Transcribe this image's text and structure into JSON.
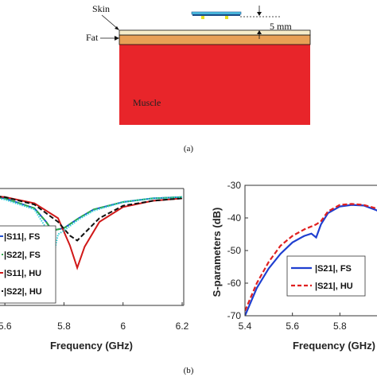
{
  "diagram": {
    "skin_label": "Skin",
    "fat_label": "Fat",
    "muscle_label": "Muscle",
    "distance_label": "5 mm",
    "caption_a": "(a)",
    "colors": {
      "skin": "#f7edc9",
      "fat": "#e8a055",
      "muscle": "#e8252a",
      "antenna_top": "#4fc6e8",
      "antenna_base": "#1c4f8a",
      "antenna_feet": "#e7e020"
    }
  },
  "caption_b": "(b)",
  "chart_data": [
    {
      "type": "line",
      "xlabel": "Frequency (GHz)",
      "ylabel": "",
      "xlim": [
        5.5,
        6.2
      ],
      "xticks": [
        "5.6",
        "5.8",
        "6",
        "6.2"
      ],
      "legend_position": "bottom-left",
      "series": [
        {
          "name": "|S11|, FS",
          "color": "#1f4fd0",
          "style": "solid",
          "x": [
            5.5,
            5.6,
            5.7,
            5.74,
            5.76,
            5.8,
            5.85,
            5.9,
            6.0,
            6.1,
            6.2
          ],
          "y": [
            0.03,
            0.06,
            0.14,
            0.25,
            0.32,
            0.3,
            0.22,
            0.15,
            0.09,
            0.06,
            0.05
          ]
        },
        {
          "name": "|S22|, FS",
          "color": "#2ea84a",
          "style": "dash",
          "x": [
            5.5,
            5.6,
            5.7,
            5.74,
            5.76,
            5.8,
            5.85,
            5.9,
            6.0,
            6.1,
            6.2
          ],
          "y": [
            0.03,
            0.06,
            0.14,
            0.25,
            0.32,
            0.3,
            0.22,
            0.15,
            0.09,
            0.06,
            0.05
          ]
        },
        {
          "name": "|S11|, HU",
          "color": "#d01818",
          "style": "solid",
          "x": [
            5.5,
            5.6,
            5.7,
            5.78,
            5.82,
            5.845,
            5.87,
            5.92,
            6.0,
            6.1,
            6.2
          ],
          "y": [
            0.03,
            0.05,
            0.1,
            0.22,
            0.44,
            0.62,
            0.45,
            0.25,
            0.13,
            0.08,
            0.06
          ]
        },
        {
          "name": "|S22|, HU",
          "color": "#111111",
          "style": "dash",
          "x": [
            5.5,
            5.6,
            5.7,
            5.78,
            5.82,
            5.845,
            5.87,
            5.92,
            6.0,
            6.1,
            6.2
          ],
          "y": [
            0.03,
            0.05,
            0.11,
            0.25,
            0.36,
            0.4,
            0.34,
            0.22,
            0.12,
            0.08,
            0.06
          ]
        },
        {
          "name": "",
          "color": "#2ad0d8",
          "style": "dot",
          "x": [
            5.5,
            5.6,
            5.7,
            5.74,
            5.755,
            5.758,
            5.762,
            5.78,
            5.8,
            5.85,
            5.9,
            6.0,
            6.1,
            6.2
          ],
          "y": [
            0.03,
            0.07,
            0.15,
            0.3,
            0.55,
            0.85,
            0.55,
            0.35,
            0.32,
            0.23,
            0.16,
            0.09,
            0.06,
            0.05
          ]
        }
      ]
    },
    {
      "type": "line",
      "xlabel": "Frequency (GHz)",
      "ylabel": "S-parameters (dB)",
      "xlim": [
        5.4,
        6.0
      ],
      "ylim": [
        -70,
        -30
      ],
      "yticks": [
        "-30",
        "-40",
        "-50",
        "-60",
        "-70"
      ],
      "xticks": [
        "5.4",
        "5.6",
        "5.8"
      ],
      "legend_position": "bottom-right",
      "series": [
        {
          "name": "|S21|, FS",
          "color": "#1f3fd0",
          "style": "solid",
          "x": [
            5.4,
            5.45,
            5.5,
            5.55,
            5.6,
            5.65,
            5.68,
            5.7,
            5.72,
            5.75,
            5.8,
            5.85,
            5.9,
            5.95,
            5.98
          ],
          "y": [
            -70,
            -61.5,
            -55.5,
            -51,
            -47.5,
            -45.5,
            -44.8,
            -46,
            -42,
            -38.5,
            -36.5,
            -36,
            -36.2,
            -37.5,
            -38.5
          ]
        },
        {
          "name": "|S21|, HU",
          "color": "#e02020",
          "style": "dash",
          "x": [
            5.4,
            5.45,
            5.5,
            5.55,
            5.6,
            5.65,
            5.7,
            5.72,
            5.75,
            5.8,
            5.85,
            5.9,
            5.95,
            5.98
          ],
          "y": [
            -68.5,
            -60,
            -53.5,
            -48.5,
            -45.5,
            -43.5,
            -42,
            -41,
            -38,
            -36,
            -35.7,
            -36,
            -37,
            -38
          ]
        }
      ]
    }
  ]
}
